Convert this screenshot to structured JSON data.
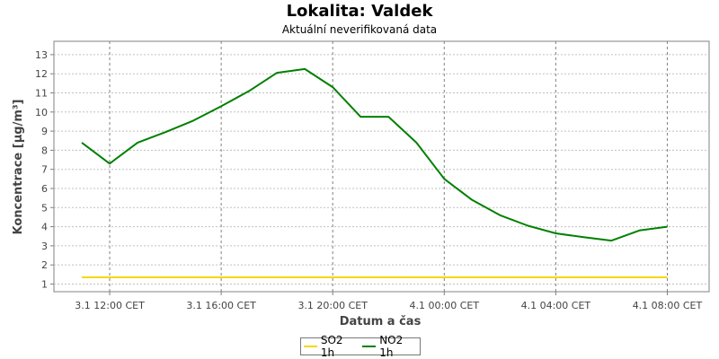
{
  "chart_data": {
    "type": "line",
    "title": "Lokalita: Valdek",
    "subtitle": "Aktuální neverifikovaná data",
    "xlabel": "Datum a čas",
    "ylabel": "Koncentrace [µg/m³]",
    "ylim": [
      0.6,
      13.7
    ],
    "yticks": [
      1,
      2,
      3,
      4,
      5,
      6,
      7,
      8,
      9,
      10,
      11,
      12,
      13
    ],
    "x_range": [
      "3.1 10:00 CET",
      "4.1 09:30 CET"
    ],
    "xticks": [
      "3.1 12:00 CET",
      "3.1 16:00 CET",
      "3.1 20:00 CET",
      "4.1 00:00 CET",
      "4.1 04:00 CET",
      "4.1 08:00 CET"
    ],
    "grid": true,
    "legend_position": "bottom",
    "series": [
      {
        "name": "SO2 1h",
        "color": "#f5d800",
        "x": [
          "3.1 11:00 CET",
          "3.1 12:00 CET",
          "3.1 13:00 CET",
          "3.1 14:00 CET",
          "3.1 15:00 CET",
          "3.1 16:00 CET",
          "3.1 17:00 CET",
          "3.1 18:00 CET",
          "3.1 19:00 CET",
          "3.1 20:00 CET",
          "3.1 21:00 CET",
          "3.1 22:00 CET",
          "3.1 23:00 CET",
          "4.1 00:00 CET",
          "4.1 01:00 CET",
          "4.1 02:00 CET",
          "4.1 03:00 CET",
          "4.1 04:00 CET",
          "4.1 05:00 CET",
          "4.1 06:00 CET",
          "4.1 07:00 CET",
          "4.1 08:00 CET"
        ],
        "values": [
          1.35,
          1.35,
          1.35,
          1.35,
          1.35,
          1.35,
          1.35,
          1.35,
          1.35,
          1.35,
          1.35,
          1.35,
          1.35,
          1.35,
          1.35,
          1.35,
          1.35,
          1.35,
          1.35,
          1.35,
          1.35,
          1.35
        ]
      },
      {
        "name": "NO2 1h",
        "color": "#008000",
        "x": [
          "3.1 11:00 CET",
          "3.1 12:00 CET",
          "3.1 13:00 CET",
          "3.1 14:00 CET",
          "3.1 15:00 CET",
          "3.1 16:00 CET",
          "3.1 17:00 CET",
          "3.1 18:00 CET",
          "3.1 19:00 CET",
          "3.1 20:00 CET",
          "3.1 21:00 CET",
          "3.1 22:00 CET",
          "3.1 23:00 CET",
          "4.1 00:00 CET",
          "4.1 01:00 CET",
          "4.1 02:00 CET",
          "4.1 03:00 CET",
          "4.1 04:00 CET",
          "4.1 05:00 CET",
          "4.1 06:00 CET",
          "4.1 07:00 CET",
          "4.1 08:00 CET"
        ],
        "values": [
          8.4,
          7.3,
          8.4,
          8.95,
          9.55,
          10.3,
          11.1,
          12.05,
          12.25,
          11.3,
          9.75,
          9.75,
          8.4,
          6.5,
          5.4,
          4.6,
          4.05,
          3.65,
          3.45,
          3.27,
          3.8,
          4.0
        ]
      }
    ]
  }
}
